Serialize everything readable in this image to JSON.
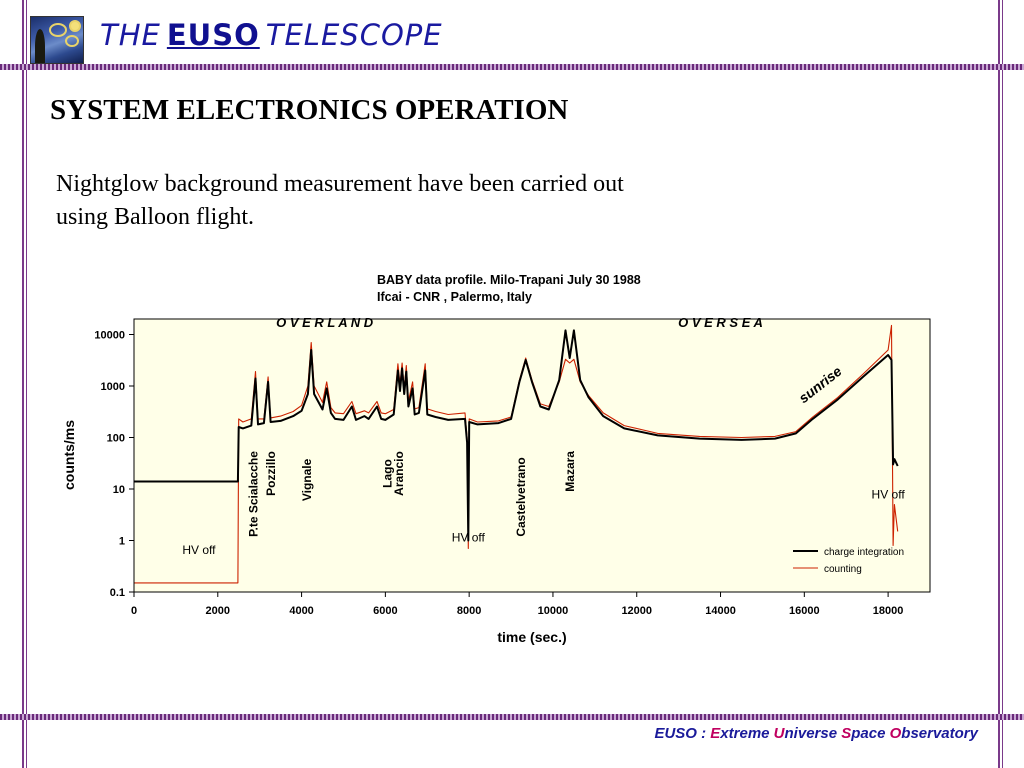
{
  "header": {
    "brand_prefix": "THE",
    "brand_mid": "EUSO",
    "brand_suffix": "TELESCOPE",
    "logo_icon": "starry-night-icon"
  },
  "slide": {
    "title": "SYSTEM ELECTRONICS OPERATION",
    "body_line1": "Nightglow background measurement have been carried out",
    "body_line2": "using Balloon flight."
  },
  "footer": {
    "p1": "EUSO : ",
    "h1": "E",
    "p2": "xtreme ",
    "h2": "U",
    "p3": "niverse ",
    "h3": "S",
    "p4": "pace ",
    "h4": "O",
    "p5": "bservatory"
  },
  "chart_data": {
    "type": "line",
    "title_line1": "BABY data profile. Milo-Trapani July 30 1988",
    "title_line2": "Ifcai - CNR , Palermo, Italy",
    "xlabel": "time (sec.)",
    "ylabel": "counts/ms",
    "xlim": [
      0,
      19000
    ],
    "ylim": [
      0.1,
      20000
    ],
    "y_scale": "log",
    "x_ticks": [
      0,
      2000,
      4000,
      6000,
      8000,
      10000,
      12000,
      14000,
      16000,
      18000
    ],
    "y_ticks": [
      0.1,
      1,
      10,
      100,
      1000,
      10000
    ],
    "y_tick_labels": [
      "0.1",
      "1",
      "10",
      "100",
      "1000",
      "10000"
    ],
    "plot_background": "#ffffe8",
    "legend_position": "bottom-right",
    "series": [
      {
        "name": "charge integration",
        "color": "#000000",
        "points": [
          [
            0,
            14
          ],
          [
            2480,
            14
          ],
          [
            2500,
            160
          ],
          [
            2600,
            150
          ],
          [
            2800,
            170
          ],
          [
            2900,
            1400
          ],
          [
            2960,
            180
          ],
          [
            3100,
            190
          ],
          [
            3200,
            1200
          ],
          [
            3260,
            200
          ],
          [
            3500,
            210
          ],
          [
            3800,
            260
          ],
          [
            4000,
            330
          ],
          [
            4150,
            700
          ],
          [
            4230,
            5000
          ],
          [
            4300,
            700
          ],
          [
            4500,
            350
          ],
          [
            4600,
            900
          ],
          [
            4700,
            300
          ],
          [
            4800,
            230
          ],
          [
            5000,
            220
          ],
          [
            5200,
            400
          ],
          [
            5300,
            220
          ],
          [
            5500,
            260
          ],
          [
            5600,
            230
          ],
          [
            5800,
            400
          ],
          [
            5900,
            230
          ],
          [
            6000,
            220
          ],
          [
            6200,
            280
          ],
          [
            6300,
            2000
          ],
          [
            6350,
            800
          ],
          [
            6400,
            2200
          ],
          [
            6450,
            700
          ],
          [
            6500,
            1900
          ],
          [
            6550,
            400
          ],
          [
            6650,
            900
          ],
          [
            6700,
            280
          ],
          [
            6800,
            300
          ],
          [
            6950,
            2000
          ],
          [
            7000,
            280
          ],
          [
            7200,
            250
          ],
          [
            7500,
            220
          ],
          [
            7900,
            230
          ],
          [
            7950,
            80
          ],
          [
            7980,
            1
          ],
          [
            8000,
            200
          ],
          [
            8200,
            180
          ],
          [
            8700,
            190
          ],
          [
            9000,
            230
          ],
          [
            9200,
            1200
          ],
          [
            9350,
            3200
          ],
          [
            9500,
            1200
          ],
          [
            9700,
            400
          ],
          [
            9900,
            350
          ],
          [
            10150,
            1300
          ],
          [
            10300,
            12000
          ],
          [
            10400,
            3500
          ],
          [
            10500,
            12000
          ],
          [
            10650,
            1300
          ],
          [
            10850,
            600
          ],
          [
            11200,
            260
          ],
          [
            11700,
            150
          ],
          [
            12500,
            110
          ],
          [
            13500,
            95
          ],
          [
            14500,
            90
          ],
          [
            15300,
            95
          ],
          [
            15800,
            120
          ],
          [
            16200,
            230
          ],
          [
            16800,
            550
          ],
          [
            17400,
            1500
          ],
          [
            18000,
            4000
          ],
          [
            18080,
            3200
          ],
          [
            18120,
            30
          ],
          [
            18150,
            38
          ],
          [
            18230,
            28
          ]
        ]
      },
      {
        "name": "counting",
        "color": "#cc2200",
        "points": [
          [
            0,
            0.15
          ],
          [
            2480,
            0.15
          ],
          [
            2500,
            230
          ],
          [
            2600,
            200
          ],
          [
            2800,
            230
          ],
          [
            2900,
            1900
          ],
          [
            2960,
            230
          ],
          [
            3100,
            230
          ],
          [
            3200,
            1500
          ],
          [
            3260,
            240
          ],
          [
            3500,
            260
          ],
          [
            3800,
            320
          ],
          [
            4000,
            420
          ],
          [
            4150,
            1000
          ],
          [
            4230,
            7000
          ],
          [
            4300,
            1000
          ],
          [
            4500,
            480
          ],
          [
            4600,
            1200
          ],
          [
            4700,
            380
          ],
          [
            4800,
            300
          ],
          [
            5000,
            290
          ],
          [
            5200,
            500
          ],
          [
            5300,
            290
          ],
          [
            5500,
            330
          ],
          [
            5600,
            300
          ],
          [
            5800,
            500
          ],
          [
            5900,
            300
          ],
          [
            6000,
            290
          ],
          [
            6200,
            350
          ],
          [
            6300,
            2700
          ],
          [
            6350,
            1100
          ],
          [
            6400,
            2800
          ],
          [
            6450,
            900
          ],
          [
            6500,
            2500
          ],
          [
            6550,
            500
          ],
          [
            6650,
            1200
          ],
          [
            6700,
            360
          ],
          [
            6800,
            380
          ],
          [
            6950,
            2700
          ],
          [
            7000,
            360
          ],
          [
            7200,
            320
          ],
          [
            7500,
            280
          ],
          [
            7900,
            300
          ],
          [
            7950,
            100
          ],
          [
            7980,
            0.7
          ],
          [
            8000,
            230
          ],
          [
            8200,
            200
          ],
          [
            8700,
            210
          ],
          [
            9000,
            250
          ],
          [
            9200,
            1300
          ],
          [
            9350,
            3500
          ],
          [
            9500,
            1300
          ],
          [
            9700,
            450
          ],
          [
            9900,
            400
          ],
          [
            10150,
            1200
          ],
          [
            10300,
            3300
          ],
          [
            10400,
            2800
          ],
          [
            10500,
            3300
          ],
          [
            10650,
            1200
          ],
          [
            10850,
            650
          ],
          [
            11200,
            300
          ],
          [
            11700,
            170
          ],
          [
            12500,
            120
          ],
          [
            13500,
            105
          ],
          [
            14500,
            100
          ],
          [
            15300,
            105
          ],
          [
            15800,
            130
          ],
          [
            16200,
            250
          ],
          [
            16800,
            600
          ],
          [
            17400,
            1700
          ],
          [
            18000,
            5000
          ],
          [
            18080,
            15000
          ],
          [
            18120,
            0.8
          ],
          [
            18150,
            5
          ],
          [
            18230,
            1.5
          ]
        ]
      }
    ],
    "annotations": [
      {
        "text": "O V E R   L A N D",
        "x": 4550,
        "y": 14000
      },
      {
        "text": "O V E R   S E A",
        "x": 14000,
        "y": 14000
      },
      {
        "text": "sunrise",
        "x": 16450,
        "y": 900
      },
      {
        "text": "HV off",
        "x": 1550,
        "y": 0.55
      },
      {
        "text": "HV off",
        "x": 7980,
        "y": 0.95
      },
      {
        "text": "HV off",
        "x": 18000,
        "y": 6.5
      },
      {
        "text": "P.te Scialacche",
        "x": 2950,
        "y": 8
      },
      {
        "text": "Pozzillo",
        "x": 3370,
        "y": 20
      },
      {
        "text": "Vignale",
        "x": 4230,
        "y": 15
      },
      {
        "text": "Lago",
        "x": 6150,
        "y": 20
      },
      {
        "text": "Arancio",
        "x": 6420,
        "y": 20
      },
      {
        "text": "Castelvetrano",
        "x": 9330,
        "y": 7
      },
      {
        "text": "Mazara",
        "x": 10500,
        "y": 22
      }
    ]
  }
}
